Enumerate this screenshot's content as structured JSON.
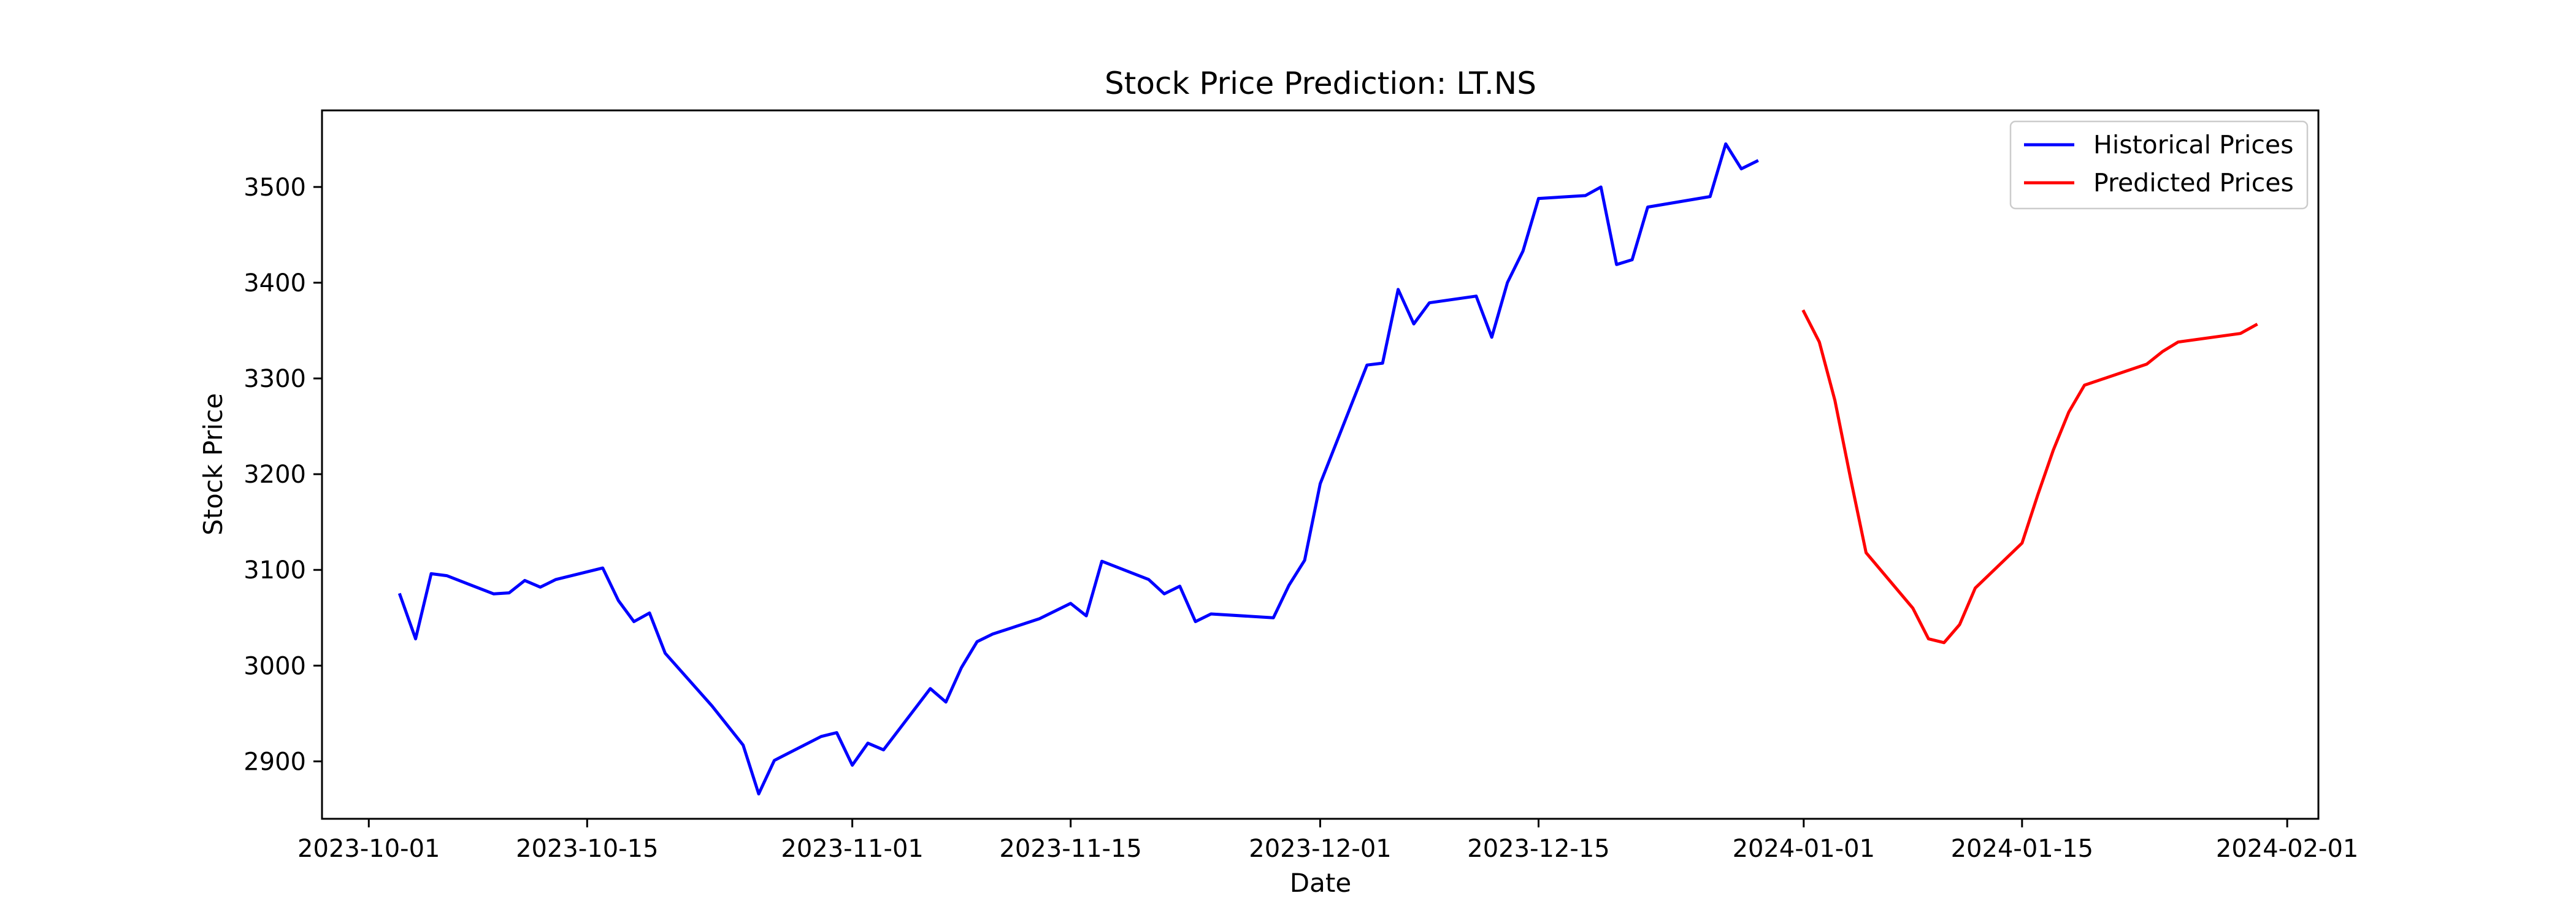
{
  "chart_data": {
    "type": "line",
    "title": "Stock Price Prediction: LT.NS",
    "xlabel": "Date",
    "ylabel": "Stock Price",
    "x_range": [
      "2023-09-28",
      "2024-02-03"
    ],
    "ylim": [
      2840,
      3580
    ],
    "x_ticks": [
      "2023-10-01",
      "2023-10-15",
      "2023-11-01",
      "2023-11-15",
      "2023-12-01",
      "2023-12-15",
      "2024-01-01",
      "2024-01-15",
      "2024-02-01"
    ],
    "y_ticks": [
      2900,
      3000,
      3100,
      3200,
      3300,
      3400,
      3500
    ],
    "grid": false,
    "legend": {
      "position": "top-right",
      "entries": [
        "Historical Prices",
        "Predicted Prices"
      ]
    },
    "series": [
      {
        "name": "Historical Prices",
        "color": "#0000ff",
        "points": [
          [
            "2023-10-03",
            3074
          ],
          [
            "2023-10-04",
            3028
          ],
          [
            "2023-10-05",
            3096
          ],
          [
            "2023-10-06",
            3094
          ],
          [
            "2023-10-09",
            3075
          ],
          [
            "2023-10-10",
            3076
          ],
          [
            "2023-10-11",
            3089
          ],
          [
            "2023-10-12",
            3082
          ],
          [
            "2023-10-13",
            3090
          ],
          [
            "2023-10-16",
            3102
          ],
          [
            "2023-10-17",
            3068
          ],
          [
            "2023-10-18",
            3046
          ],
          [
            "2023-10-19",
            3055
          ],
          [
            "2023-10-20",
            3013
          ],
          [
            "2023-10-23",
            2958
          ],
          [
            "2023-10-25",
            2917
          ],
          [
            "2023-10-26",
            2866
          ],
          [
            "2023-10-27",
            2901
          ],
          [
            "2023-10-30",
            2926
          ],
          [
            "2023-10-31",
            2930
          ],
          [
            "2023-11-01",
            2896
          ],
          [
            "2023-11-02",
            2919
          ],
          [
            "2023-11-03",
            2912
          ],
          [
            "2023-11-06",
            2976
          ],
          [
            "2023-11-07",
            2962
          ],
          [
            "2023-11-08",
            2998
          ],
          [
            "2023-11-09",
            3025
          ],
          [
            "2023-11-10",
            3033
          ],
          [
            "2023-11-13",
            3049
          ],
          [
            "2023-11-15",
            3065
          ],
          [
            "2023-11-16",
            3052
          ],
          [
            "2023-11-17",
            3109
          ],
          [
            "2023-11-20",
            3090
          ],
          [
            "2023-11-21",
            3075
          ],
          [
            "2023-11-22",
            3083
          ],
          [
            "2023-11-23",
            3046
          ],
          [
            "2023-11-24",
            3054
          ],
          [
            "2023-11-28",
            3050
          ],
          [
            "2023-11-29",
            3084
          ],
          [
            "2023-11-30",
            3110
          ],
          [
            "2023-12-01",
            3190
          ],
          [
            "2023-12-04",
            3314
          ],
          [
            "2023-12-05",
            3316
          ],
          [
            "2023-12-06",
            3393
          ],
          [
            "2023-12-07",
            3357
          ],
          [
            "2023-12-08",
            3379
          ],
          [
            "2023-12-11",
            3386
          ],
          [
            "2023-12-12",
            3343
          ],
          [
            "2023-12-13",
            3400
          ],
          [
            "2023-12-14",
            3433
          ],
          [
            "2023-12-15",
            3488
          ],
          [
            "2023-12-18",
            3491
          ],
          [
            "2023-12-19",
            3500
          ],
          [
            "2023-12-20",
            3419
          ],
          [
            "2023-12-21",
            3424
          ],
          [
            "2023-12-22",
            3479
          ],
          [
            "2023-12-26",
            3490
          ],
          [
            "2023-12-27",
            3545
          ],
          [
            "2023-12-28",
            3519
          ],
          [
            "2023-12-29",
            3527
          ]
        ]
      },
      {
        "name": "Predicted Prices",
        "color": "#ff0000",
        "points": [
          [
            "2024-01-01",
            3370
          ],
          [
            "2024-01-02",
            3338
          ],
          [
            "2024-01-03",
            3277
          ],
          [
            "2024-01-04",
            3196
          ],
          [
            "2024-01-05",
            3118
          ],
          [
            "2024-01-08",
            3060
          ],
          [
            "2024-01-09",
            3028
          ],
          [
            "2024-01-10",
            3024
          ],
          [
            "2024-01-11",
            3043
          ],
          [
            "2024-01-12",
            3081
          ],
          [
            "2024-01-15",
            3128
          ],
          [
            "2024-01-16",
            3178
          ],
          [
            "2024-01-17",
            3225
          ],
          [
            "2024-01-18",
            3265
          ],
          [
            "2024-01-19",
            3293
          ],
          [
            "2024-01-23",
            3315
          ],
          [
            "2024-01-24",
            3328
          ],
          [
            "2024-01-25",
            3338
          ],
          [
            "2024-01-29",
            3347
          ],
          [
            "2024-01-30",
            3356
          ]
        ]
      }
    ]
  }
}
